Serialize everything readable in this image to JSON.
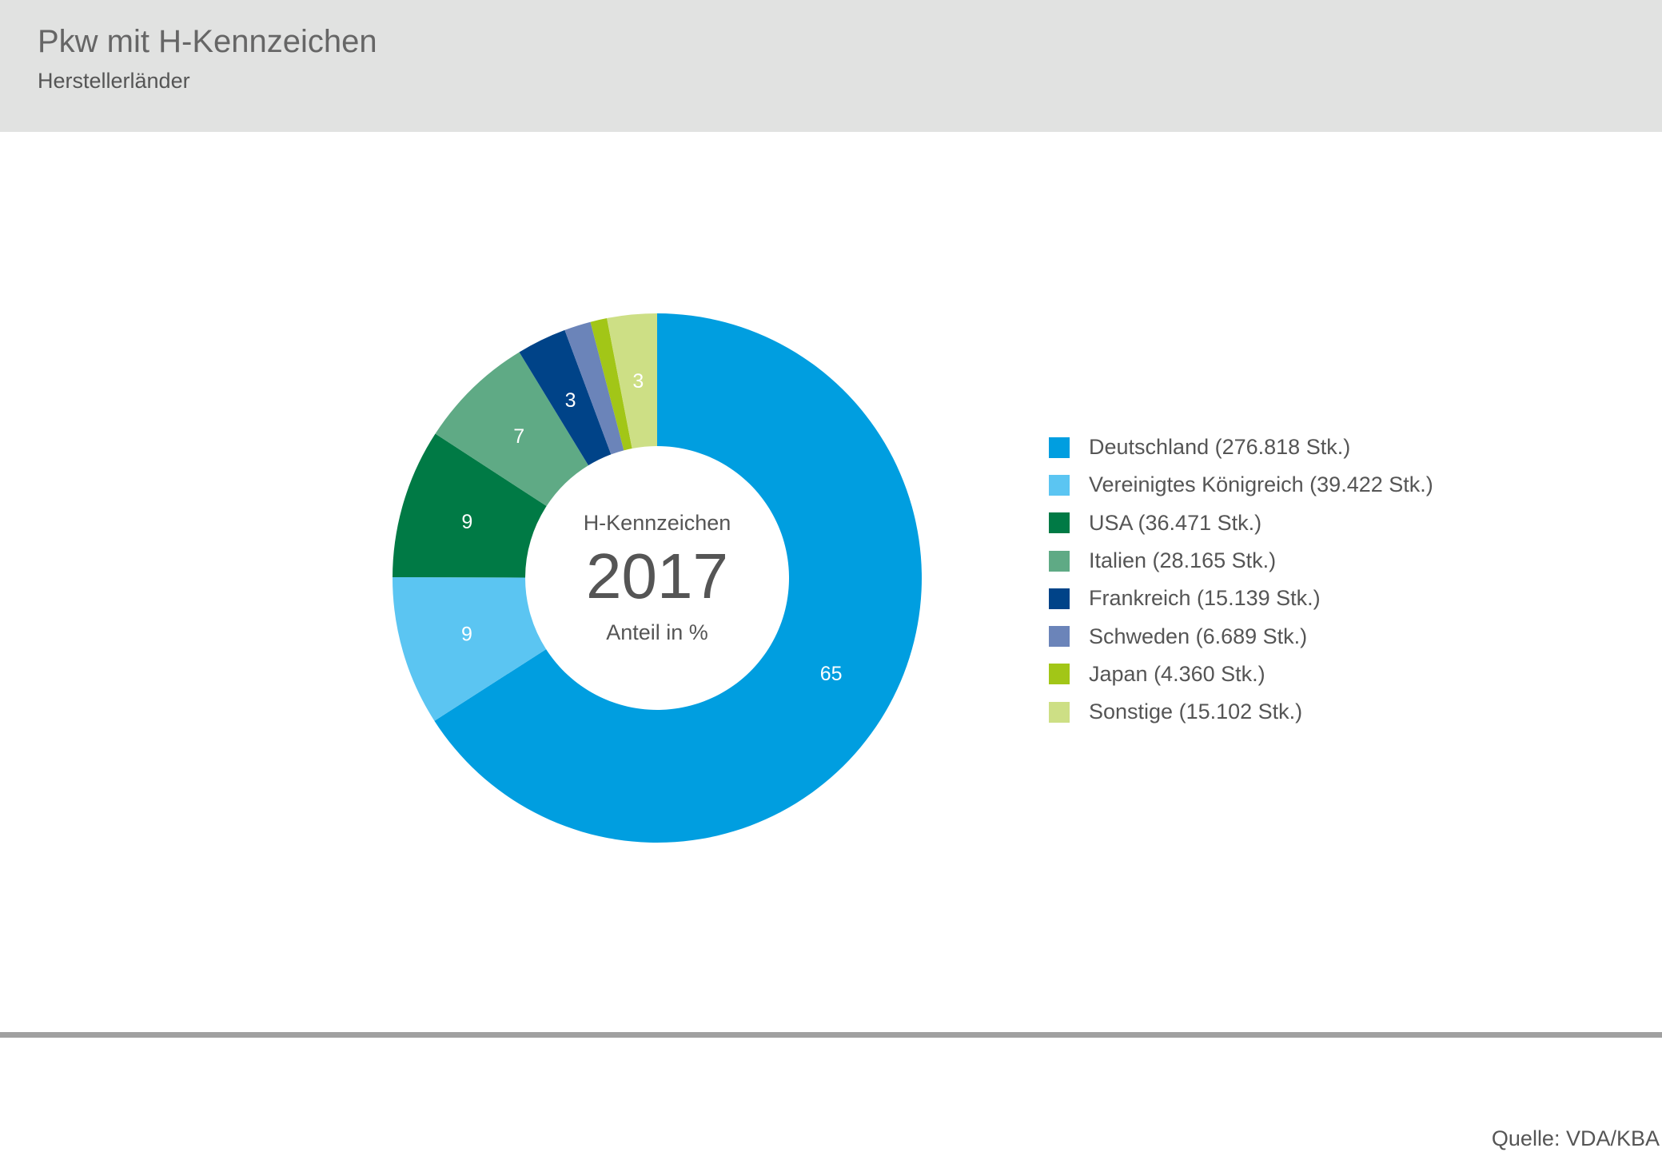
{
  "header": {
    "title": "Pkw mit H-Kennzeichen",
    "subtitle": "Herstellerländer"
  },
  "chart_data": {
    "type": "pie",
    "donut": true,
    "center": {
      "label_top": "H-Kennzeichen",
      "year": "2017",
      "label_bottom": "Anteil in %"
    },
    "categories": [
      "Deutschland",
      "Vereinigtes Königreich",
      "USA",
      "Italien",
      "Frankreich",
      "Schweden",
      "Japan",
      "Sonstige"
    ],
    "values": [
      65,
      9,
      9,
      7,
      3,
      1.6,
      1,
      3
    ],
    "slice_labels": [
      "65",
      "9",
      "9",
      "7",
      "3",
      "",
      "",
      "3"
    ],
    "colors": [
      "#009ee0",
      "#5bc5f2",
      "#007a45",
      "#5faa85",
      "#004388",
      "#6b84b9",
      "#a2c617",
      "#cddf85"
    ],
    "legend": [
      "Deutschland (276.818 Stk.)",
      "Vereinigtes Königreich (39.422 Stk.)",
      "USA (36.471 Stk.)",
      "Italien (28.165 Stk.)",
      "Frankreich (15.139 Stk.)",
      "Schweden (6.689 Stk.)",
      "Japan (4.360 Stk.)",
      "Sonstige (15.102 Stk.)"
    ],
    "legend_position": "right"
  },
  "footer": {
    "source": "Quelle: VDA/KBA"
  }
}
